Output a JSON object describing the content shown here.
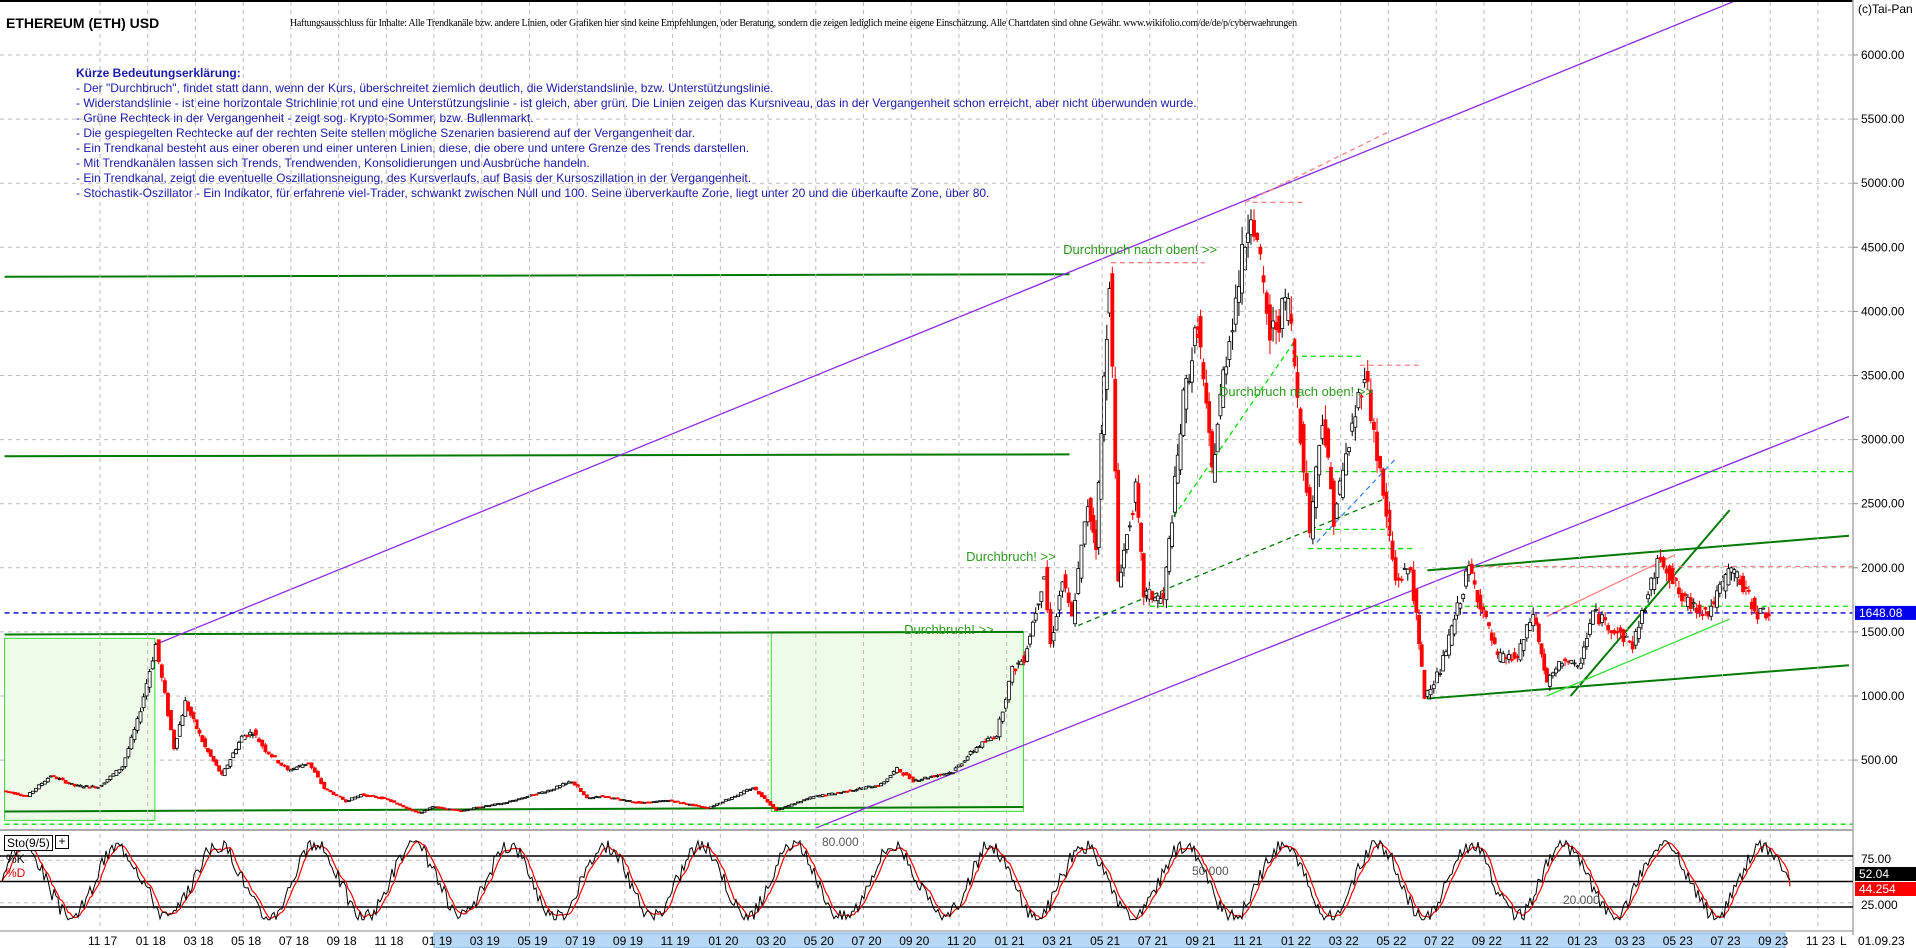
{
  "header": {
    "title": "ETHEREUM (ETH) USD",
    "disclaimer": "Haftungsausschluss für Inhalte: Alle Trendkanäle bzw. andere Linien, oder Grafiken hier sind keine Empfehlungen, oder Beratung, sondern die zeigen lediglich meine eigene Einschätzung. Alle Chartdaten sind ohne Gewähr.  www.wikifolio.com/de/de/p/cyberwaehrungen",
    "copyright": "(c)Tai-Pan"
  },
  "legend": {
    "heading": "Kürze Bedeutungserklärung:",
    "lines": [
      "- Der \"Durchbruch\", findet statt dann, wenn der Kurs, überschreitet ziemlich deutlich, die Widerstandslinie, bzw. Unterstützungslinie.",
      "- Widerstandslinie - ist eine horizontale Strichlinie rot und eine Unterstützungslinie - ist gleich, aber grün. Die Linien zeigen das Kursniveau, das in der Vergangenheit schon erreicht, aber nicht überwunden wurde.",
      "- Grüne Rechteck in der Vergangenheit - zeigt sog. Krypto-Sommer, bzw. Bullenmarkt.",
      " - Die gespiegelten Rechtecke auf der rechten Seite stellen mögliche Szenarien basierend auf der Vergangenheit dar.",
      " - Ein Trendkanal besteht aus einer oberen und einer unteren Linien, diese, die obere und untere Grenze des Trends darstellen.",
      " - Mit Trendkanälen lassen sich Trends, Trendwenden, Konsolidierungen und Ausbrüche handeln.",
      " - Ein Trendkanal, zeigt die eventuelle Oszillationsneigung, des Kursverlaufs, auf Basis der Kursoszillation in der Vergangenheit.",
      " - Stochastik-Oszillator - Ein Indikator, für erfahrene viel-Trader, schwankt zwischen Null und 100. Seine überverkaufte Zone, liegt unter 20 und die überkaufte Zone, über 80."
    ]
  },
  "chart_data": {
    "type": "line",
    "title": "ETHEREUM (ETH) USD",
    "ylim": [
      0,
      6000
    ],
    "y_ticks": [
      "500.00",
      "1000.00",
      "1500.00",
      "2000.00",
      "2500.00",
      "3000.00",
      "3500.00",
      "4000.00",
      "4500.00",
      "5000.00",
      "5500.00",
      "6000.00"
    ],
    "x_ticks": [
      "11 17",
      "01 18",
      "03 18",
      "05 18",
      "07 18",
      "09 18",
      "11 18",
      "01 19",
      "03 19",
      "05 19",
      "07 19",
      "09 19",
      "11 19",
      "01 20",
      "03 20",
      "05 20",
      "07 20",
      "09 20",
      "11 20",
      "01 21",
      "03 21",
      "05 21",
      "07 21",
      "09 21",
      "11 21",
      "01 22",
      "03 22",
      "05 22",
      "07 22",
      "09 22",
      "11 22",
      "01 23",
      "03 23",
      "05 23",
      "07 23",
      "09 23",
      "11 23"
    ],
    "x_end_label": "L",
    "date_label": "01.09.23",
    "grid": true,
    "last_price": "1648.08",
    "colors": {
      "price_down": "#ff0000",
      "price_up": "#000000",
      "trend_purple": "#8a2be2",
      "support": "#00cc00",
      "resistance": "#ff8080",
      "current": "#0000cc"
    },
    "series": [
      {
        "points": [
          [
            "2017-07-01",
            260
          ],
          [
            "2017-08-01",
            220
          ],
          [
            "2017-09-01",
            380
          ],
          [
            "2017-10-01",
            300
          ],
          [
            "2017-11-01",
            290
          ],
          [
            "2017-12-01",
            450
          ],
          [
            "2017-12-20",
            800
          ],
          [
            "2018-01-13",
            1400
          ],
          [
            "2018-02-06",
            600
          ],
          [
            "2018-02-20",
            950
          ],
          [
            "2018-03-15",
            600
          ],
          [
            "2018-04-06",
            380
          ],
          [
            "2018-05-01",
            680
          ],
          [
            "2018-05-15",
            720
          ],
          [
            "2018-06-01",
            580
          ],
          [
            "2018-06-29",
            420
          ],
          [
            "2018-07-25",
            480
          ],
          [
            "2018-08-15",
            280
          ],
          [
            "2018-09-12",
            180
          ],
          [
            "2018-10-01",
            230
          ],
          [
            "2018-11-01",
            200
          ],
          [
            "2018-12-14",
            85
          ],
          [
            "2018-12-31",
            135
          ],
          [
            "2019-02-07",
            105
          ],
          [
            "2019-03-01",
            135
          ],
          [
            "2019-04-01",
            165
          ],
          [
            "2019-05-30",
            270
          ],
          [
            "2019-06-26",
            335
          ],
          [
            "2019-07-15",
            200
          ],
          [
            "2019-08-01",
            220
          ],
          [
            "2019-09-24",
            165
          ],
          [
            "2019-10-28",
            185
          ],
          [
            "2019-12-17",
            125
          ],
          [
            "2020-02-14",
            285
          ],
          [
            "2020-03-13",
            110
          ],
          [
            "2020-04-30",
            215
          ],
          [
            "2020-06-01",
            245
          ],
          [
            "2020-07-25",
            310
          ],
          [
            "2020-08-15",
            430
          ],
          [
            "2020-09-05",
            340
          ],
          [
            "2020-10-25",
            410
          ],
          [
            "2020-11-25",
            600
          ],
          [
            "2020-12-20",
            700
          ],
          [
            "2021-01-10",
            1200
          ],
          [
            "2021-01-25",
            1300
          ],
          [
            "2021-02-20",
            1950
          ],
          [
            "2021-02-28",
            1400
          ],
          [
            "2021-03-13",
            1900
          ],
          [
            "2021-03-25",
            1600
          ],
          [
            "2021-04-15",
            2500
          ],
          [
            "2021-04-25",
            2200
          ],
          [
            "2021-05-12",
            4300
          ],
          [
            "2021-05-23",
            1900
          ],
          [
            "2021-06-15",
            2600
          ],
          [
            "2021-06-25",
            1800
          ],
          [
            "2021-07-20",
            1750
          ],
          [
            "2021-08-15",
            3300
          ],
          [
            "2021-09-03",
            3900
          ],
          [
            "2021-09-21",
            2750
          ],
          [
            "2021-10-05",
            3500
          ],
          [
            "2021-10-29",
            4400
          ],
          [
            "2021-11-10",
            4850
          ],
          [
            "2021-12-04",
            3800
          ],
          [
            "2021-12-27",
            4100
          ],
          [
            "2022-01-24",
            2300
          ],
          [
            "2022-02-10",
            3200
          ],
          [
            "2022-02-24",
            2400
          ],
          [
            "2022-04-03",
            3550
          ],
          [
            "2022-05-12",
            1900
          ],
          [
            "2022-05-31",
            2000
          ],
          [
            "2022-06-18",
            1000
          ],
          [
            "2022-07-08",
            1200
          ],
          [
            "2022-08-14",
            2000
          ],
          [
            "2022-09-20",
            1300
          ],
          [
            "2022-10-15",
            1300
          ],
          [
            "2022-11-05",
            1650
          ],
          [
            "2022-11-22",
            1100
          ],
          [
            "2022-12-15",
            1300
          ],
          [
            "2022-12-31",
            1200
          ],
          [
            "2023-01-20",
            1650
          ],
          [
            "2023-03-10",
            1400
          ],
          [
            "2023-04-15",
            2100
          ],
          [
            "2023-05-12",
            1750
          ],
          [
            "2023-06-15",
            1650
          ],
          [
            "2023-07-14",
            2000
          ],
          [
            "2023-08-17",
            1650
          ],
          [
            "2023-09-01",
            1648
          ]
        ]
      }
    ],
    "annotations": [
      {
        "text": "Durchbruch nach oben! >>",
        "date": "2021-03-12",
        "price": 4448
      },
      {
        "text": "Durchbruch nach oben! >>",
        "date": "2021-09-28",
        "price": 3340
      },
      {
        "text": "Durchbruch! >>",
        "date": "2020-11-10",
        "price": 2053
      },
      {
        "text": "Durchbruch! >>",
        "date": "2020-08-22",
        "price": 1484
      }
    ],
    "lines": [
      {
        "kind": "solid",
        "color": "#007a00",
        "from": [
          "2017-07-01",
          4270
        ],
        "to": [
          "2021-03-20",
          4290
        ]
      },
      {
        "kind": "solid",
        "color": "#007a00",
        "from": [
          "2017-07-01",
          2870
        ],
        "to": [
          "2021-03-20",
          2885
        ]
      },
      {
        "kind": "solid",
        "color": "#007a00",
        "from": [
          "2017-07-01",
          1480
        ],
        "to": [
          "2021-01-22",
          1500
        ]
      },
      {
        "kind": "solid",
        "color": "#007a00",
        "from": [
          "2017-07-01",
          99
        ],
        "to": [
          "2021-01-22",
          134
        ]
      },
      {
        "kind": "solid",
        "color": "#8a2be2",
        "from": [
          "2018-01-10",
          1400
        ],
        "to": [
          "2023-07-20",
          6430
        ]
      },
      {
        "kind": "solid",
        "color": "#8a2be2",
        "from": [
          "2020-05-01",
          -30
        ],
        "to": [
          "2023-12-10",
          3180
        ]
      },
      {
        "kind": "solid",
        "color": "#007a00",
        "from": [
          "2022-06-20",
          1980
        ],
        "to": [
          "2023-12-10",
          2250
        ]
      },
      {
        "kind": "solid",
        "color": "#007a00",
        "from": [
          "2022-06-20",
          980
        ],
        "to": [
          "2023-12-10",
          1240
        ]
      },
      {
        "kind": "solid",
        "color": "#007a00",
        "from": [
          "2022-12-20",
          1000
        ],
        "to": [
          "2023-07-10",
          2450
        ]
      },
      {
        "kind": "solid",
        "color": "#33dd33",
        "from": [
          "2022-11-20",
          1000
        ],
        "to": [
          "2023-07-10",
          1600
        ]
      },
      {
        "kind": "solid",
        "color": "#ff8080",
        "from": [
          "2022-11-20",
          1620
        ],
        "to": [
          "2023-05-01",
          2100
        ]
      },
      {
        "kind": "dashed",
        "color": "#0000cc",
        "from": [
          "2017-07-01",
          1648
        ],
        "to": [
          "2023-12-20",
          1648
        ]
      },
      {
        "kind": "dashed",
        "color": "#00dd00",
        "from": [
          "2017-07-01",
          0
        ],
        "to": [
          "2023-12-20",
          0
        ]
      },
      {
        "kind": "dashed",
        "color": "#00dd00",
        "from": [
          "2021-07-01",
          1700
        ],
        "to": [
          "2023-12-20",
          1700
        ]
      },
      {
        "kind": "dashed",
        "color": "#00dd00",
        "from": [
          "2021-09-15",
          2750
        ],
        "to": [
          "2023-12-20",
          2750
        ]
      },
      {
        "kind": "dashed",
        "color": "#00dd00",
        "from": [
          "2022-01-01",
          3650
        ],
        "to": [
          "2022-04-01",
          3650
        ]
      },
      {
        "kind": "dashed",
        "color": "#00dd00",
        "from": [
          "2022-02-01",
          2300
        ],
        "to": [
          "2022-05-01",
          2300
        ]
      },
      {
        "kind": "dashed",
        "color": "#00dd00",
        "from": [
          "2022-01-20",
          2150
        ],
        "to": [
          "2022-06-01",
          2150
        ]
      },
      {
        "kind": "dashed",
        "color": "#ff8080",
        "from": [
          "2022-08-15",
          2010
        ],
        "to": [
          "2023-12-20",
          2010
        ]
      },
      {
        "kind": "dashed",
        "color": "#ff8080",
        "from": [
          "2021-11-10",
          4850
        ],
        "to": [
          "2022-01-15",
          4850
        ]
      },
      {
        "kind": "dashed",
        "color": "#ff8080",
        "from": [
          "2021-05-12",
          4380
        ],
        "to": [
          "2021-09-10",
          4380
        ]
      },
      {
        "kind": "dashed",
        "color": "#ff8080",
        "from": [
          "2022-03-25",
          3580
        ],
        "to": [
          "2022-06-10",
          3580
        ]
      },
      {
        "kind": "dashed",
        "color": "#ff8080",
        "from": [
          "2021-11-01",
          4850
        ],
        "to": [
          "2022-05-01",
          5400
        ]
      },
      {
        "kind": "dashed",
        "color": "#007a00",
        "from": [
          "2021-04-01",
          1550
        ],
        "to": [
          "2022-05-01",
          2550
        ]
      },
      {
        "kind": "dashed",
        "color": "#00dd00",
        "from": [
          "2021-08-01",
          2400
        ],
        "to": [
          "2022-01-01",
          3750
        ]
      },
      {
        "kind": "dashed",
        "color": "#3388ff",
        "from": [
          "2022-02-01",
          2200
        ],
        "to": [
          "2022-05-10",
          2850
        ]
      }
    ],
    "rectangles": [
      {
        "from": [
          "2017-07-01",
          30
        ],
        "to": [
          "2018-01-10",
          1450
        ]
      },
      {
        "from": [
          "2020-03-05",
          100
        ],
        "to": [
          "2021-01-22",
          1500
        ]
      }
    ]
  },
  "stochastic": {
    "label": "Sto(9/5)",
    "plus": "+",
    "k_label": "%K",
    "d_label": "%D",
    "levels": {
      "upper": 80,
      "middle": 50,
      "lower": 20
    },
    "level_labels": [
      "80.000",
      "50.000",
      "20.000"
    ],
    "axis_labels": [
      "75.00",
      "25.000"
    ],
    "k_value": "52.04",
    "d_value": "44.254"
  }
}
